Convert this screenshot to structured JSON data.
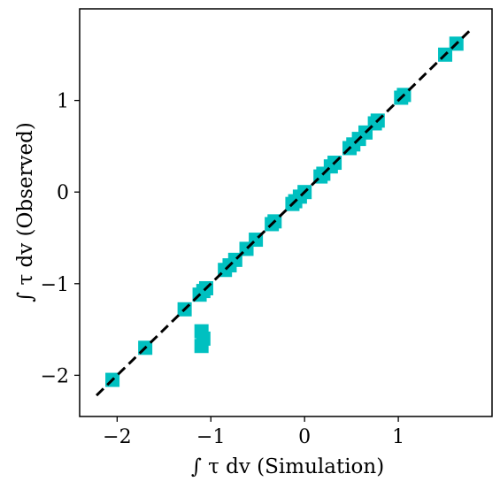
{
  "chart_data": {
    "type": "scatter",
    "title": "",
    "xlabel": "∫ τ dv (Simulation)",
    "ylabel": "∫ τ dv (Observed)",
    "xlim": [
      -2.4,
      2.0
    ],
    "ylim": [
      -2.45,
      2.0
    ],
    "xticks": [
      -2,
      -1,
      0,
      1
    ],
    "yticks": [
      -2,
      -1,
      0,
      1
    ],
    "xtick_labels": [
      "−2",
      "−1",
      "0",
      "1"
    ],
    "ytick_labels": [
      "−2",
      "−1",
      "0",
      "1"
    ],
    "grid": false,
    "legend": "none",
    "series": [
      {
        "marker": "square",
        "color": "#00c0c0",
        "points": [
          [
            -2.05,
            -2.05
          ],
          [
            -1.7,
            -1.7
          ],
          [
            -1.28,
            -1.28
          ],
          [
            -1.12,
            -1.12
          ],
          [
            -1.08,
            -1.08
          ],
          [
            -1.05,
            -1.05
          ],
          [
            -1.1,
            -1.52
          ],
          [
            -1.08,
            -1.6
          ],
          [
            -1.1,
            -1.68
          ],
          [
            -0.85,
            -0.85
          ],
          [
            -0.8,
            -0.8
          ],
          [
            -0.74,
            -0.74
          ],
          [
            -0.62,
            -0.62
          ],
          [
            -0.52,
            -0.52
          ],
          [
            -0.35,
            -0.35
          ],
          [
            -0.32,
            -0.32
          ],
          [
            -0.13,
            -0.13
          ],
          [
            -0.1,
            -0.1
          ],
          [
            -0.05,
            -0.05
          ],
          [
            0.0,
            0.0
          ],
          [
            0.17,
            0.17
          ],
          [
            0.2,
            0.2
          ],
          [
            0.28,
            0.28
          ],
          [
            0.32,
            0.32
          ],
          [
            0.48,
            0.48
          ],
          [
            0.52,
            0.52
          ],
          [
            0.58,
            0.58
          ],
          [
            0.65,
            0.65
          ],
          [
            0.75,
            0.75
          ],
          [
            0.78,
            0.78
          ],
          [
            1.03,
            1.03
          ],
          [
            1.06,
            1.06
          ],
          [
            1.5,
            1.5
          ],
          [
            1.62,
            1.62
          ]
        ]
      }
    ],
    "reference_line": {
      "style": "dashed",
      "color": "#000000",
      "x": [
        -2.22,
        1.78
      ],
      "y": [
        -2.22,
        1.78
      ]
    }
  }
}
